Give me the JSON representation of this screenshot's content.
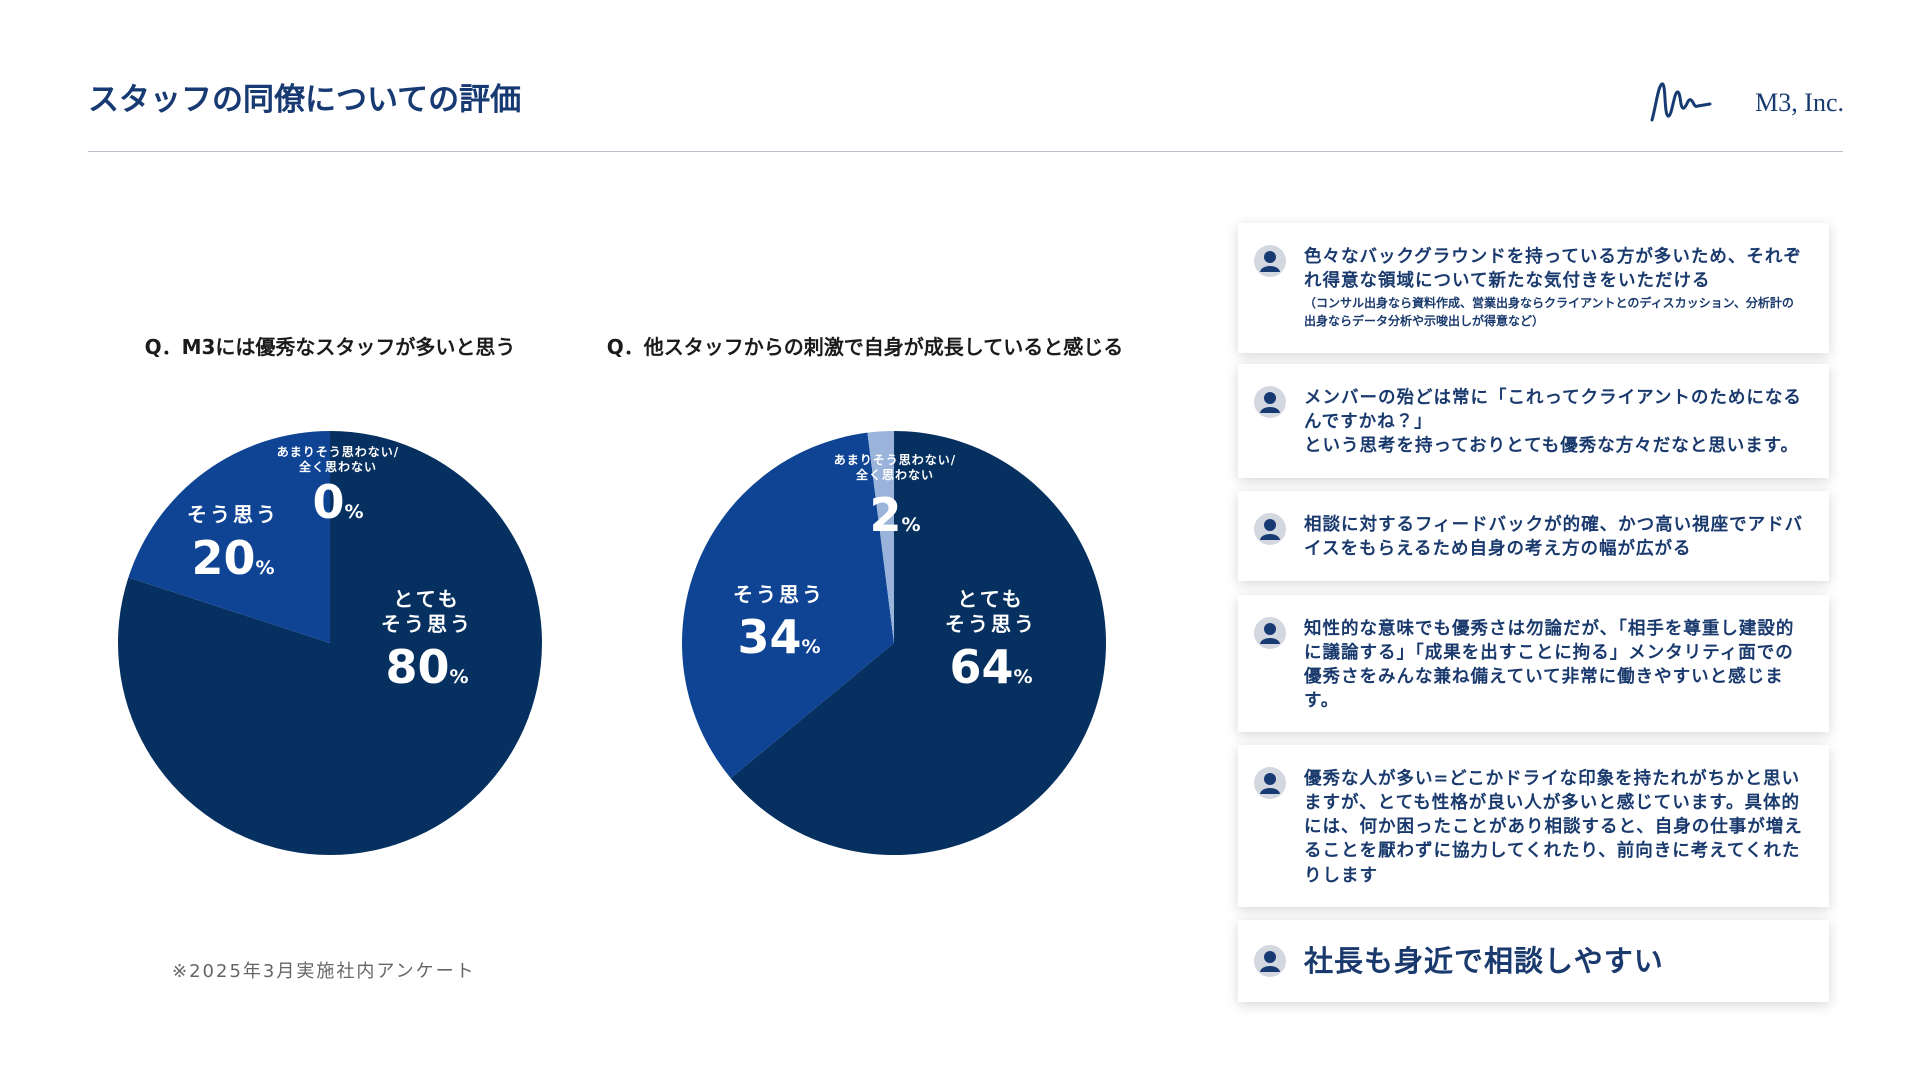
{
  "header": {
    "title": "スタッフの同僚についての評価",
    "logo": "M3, Inc."
  },
  "chart_data": [
    {
      "type": "pie",
      "title": "Q．M3には優秀なスタッフが多いと思う",
      "categories": [
        "とても\nそう思う",
        "そう思う",
        "あまりそう思わない/\n全く思わない"
      ],
      "values": [
        80,
        20,
        0
      ],
      "unit": "%",
      "colors": [
        "#06305f",
        "#0f4495",
        "#9ab3db"
      ]
    },
    {
      "type": "pie",
      "title": "Q．他スタッフからの刺激で自身が成長していると感じる",
      "categories": [
        "とても\nそう思う",
        "そう思う",
        "あまりそう思わない/\n全く思わない"
      ],
      "values": [
        64,
        34,
        2
      ],
      "unit": "%",
      "colors": [
        "#06305f",
        "#0f4495",
        "#9ab3db"
      ]
    }
  ],
  "footnote": "※2025年3月実施社内アンケート",
  "comments": [
    {
      "text": "色々なバックグラウンドを持っている方が多いため、それぞれ得意な領域について新たな気付きをいただける",
      "note": "（コンサル出身なら資料作成、営業出身ならクライアントとのディスカッション、分析計の出身ならデータ分析や示唆出しが得意など）"
    },
    {
      "text": "メンバーの殆どは常に「これってクライアントのためになるんですかね？」\nという思考を持っておりとても優秀な方々だなと思います。"
    },
    {
      "text": "相談に対するフィードバックが的確、かつ高い視座でアドバイスをもらえるため自身の考え方の幅が広がる"
    },
    {
      "text": "知性的な意味でも優秀さは勿論だが、「相手を尊重し建設的に議論する」「成果を出すことに拘る」メンタリティ面での優秀さをみんな兼ね備えていて非常に働きやすいと感じます。"
    },
    {
      "text": "優秀な人が多い=どこかドライな印象を持たれがちかと思いますが、とても性格が良い人が多いと感じています。具体的には、何か困ったことがあり相談すると、自身の仕事が増えることを厭わずに協力してくれたり、前向きに考えてくれたりします"
    },
    {
      "text": "社長も身近で相談しやすい"
    }
  ]
}
